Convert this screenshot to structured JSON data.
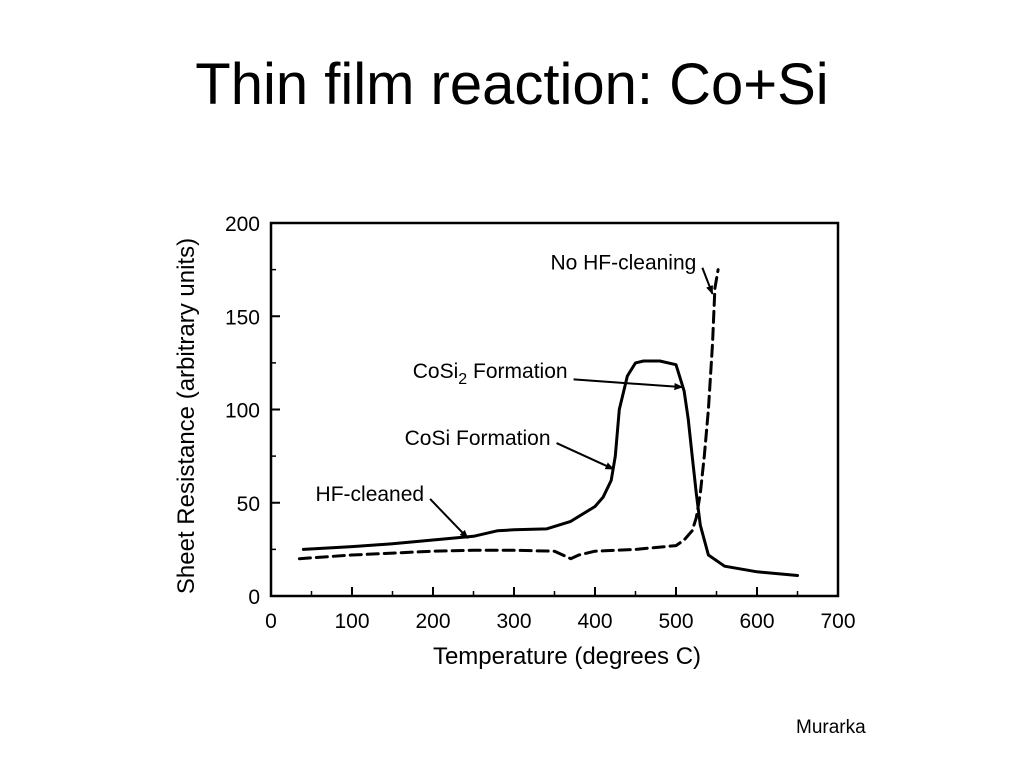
{
  "slide": {
    "title": "Thin film reaction: Co+Si",
    "credit": "Murarka"
  },
  "chart_data": {
    "type": "line",
    "xlabel": "Temperature (degrees C)",
    "ylabel": "Sheet Resistance (arbitrary units)",
    "xlim": [
      0,
      700
    ],
    "ylim": [
      0,
      200
    ],
    "x_ticks": [
      "0",
      "100",
      "200",
      "300",
      "400",
      "500",
      "600",
      "700"
    ],
    "y_ticks": [
      "0",
      "50",
      "100",
      "150",
      "200"
    ],
    "grid": false,
    "legend": "none",
    "series": [
      {
        "name": "HF-cleaned",
        "style": "solid",
        "x": [
          40,
          100,
          150,
          200,
          250,
          280,
          300,
          340,
          370,
          400,
          410,
          420,
          425,
          430,
          440,
          450,
          460,
          480,
          500,
          510,
          515,
          520,
          525,
          530,
          540,
          560,
          600,
          650
        ],
        "y": [
          25,
          26.5,
          28,
          30,
          32,
          35,
          35.5,
          36,
          40,
          48,
          53,
          62,
          75,
          100,
          118,
          125,
          126,
          126,
          124,
          110,
          95,
          75,
          55,
          38,
          22,
          16,
          13,
          11
        ]
      },
      {
        "name": "No HF-cleaning",
        "style": "dashed",
        "x": [
          35,
          100,
          200,
          250,
          300,
          350,
          365,
          370,
          380,
          400,
          450,
          500,
          510,
          520,
          525,
          530,
          535,
          540,
          545,
          548,
          552
        ],
        "y": [
          20,
          22,
          24,
          24.5,
          24.5,
          24,
          21,
          20,
          22,
          24,
          25,
          27,
          30,
          35,
          42,
          55,
          75,
          100,
          135,
          165,
          175
        ]
      }
    ],
    "annotations": [
      {
        "text_main": "No HF-cleaning",
        "text_sub": "",
        "text_tail": "",
        "tx": 345,
        "ty": 175,
        "ax": 545,
        "ay": 162
      },
      {
        "text_main": "CoSi",
        "text_sub": "2",
        "text_tail": " Formation",
        "tx": 175,
        "ty": 117,
        "ax": 508,
        "ay": 112
      },
      {
        "text_main": "CoSi Formation",
        "text_sub": "",
        "text_tail": "",
        "tx": 165,
        "ty": 81,
        "ax": 423,
        "ay": 68
      },
      {
        "text_main": "HF-cleaned",
        "text_sub": "",
        "text_tail": "",
        "tx": 55,
        "ty": 51,
        "ax": 243,
        "ay": 31
      }
    ]
  }
}
